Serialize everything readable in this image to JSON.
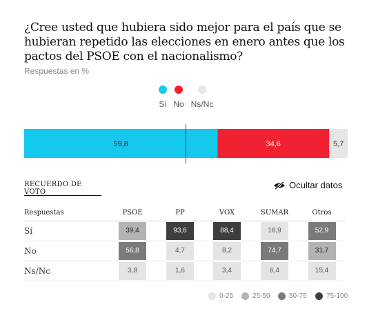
{
  "header": {
    "title": "¿Cree usted que hubiera sido mejor para el país que se hubieran repetido las elecciones en enero antes que los pactos del PSOE con el nacionalismo?",
    "subtitle": "Respuestas en %"
  },
  "chart_data": {
    "type": "bar",
    "orientation": "horizontal-stacked",
    "title": "¿Cree usted que hubiera sido mejor para el país que se hubieran repetido las elecciones en enero antes que los pactos del PSOE con el nacionalismo?",
    "unit_note": "Respuestas en %",
    "categories": [
      "Sí",
      "No",
      "Ns/Nc"
    ],
    "values": [
      59.8,
      34.6,
      5.7
    ],
    "value_labels": [
      "59,8",
      "34,6",
      "5,7"
    ],
    "colors": [
      "#15c8ee",
      "#f22131",
      "#e6e6e6"
    ],
    "xlim": [
      0,
      100
    ],
    "midline": 50,
    "legend": [
      {
        "label": "Sí",
        "color": "#15c8ee"
      },
      {
        "label": "No",
        "color": "#f22131"
      },
      {
        "label": "Ns/Nc",
        "color": "#e6e6e6"
      }
    ]
  },
  "breakdown": {
    "tab_label": "RECUERDO DE VOTO",
    "toggle_label": "Ocultar datos",
    "headers": [
      "Respuestas",
      "PSOE",
      "PP",
      "VOX",
      "SUMAR",
      "Otros"
    ],
    "rows": [
      {
        "label": "Sí",
        "values": [
          "39,4",
          "93,6",
          "88,4",
          "18,9",
          "52,9"
        ]
      },
      {
        "label": "No",
        "values": [
          "56,8",
          "4,7",
          "8,2",
          "74,7",
          "31,7"
        ]
      },
      {
        "label": "Ns/Nc",
        "values": [
          "3,8",
          "1,6",
          "3,4",
          "6,4",
          "15,4"
        ]
      }
    ]
  },
  "scale": [
    {
      "label": "0-25",
      "color": "#e4e4e4"
    },
    {
      "label": "25-50",
      "color": "#b3b3b3"
    },
    {
      "label": "50-75",
      "color": "#7a7a7a"
    },
    {
      "label": "75-100",
      "color": "#3e3e3e"
    }
  ]
}
